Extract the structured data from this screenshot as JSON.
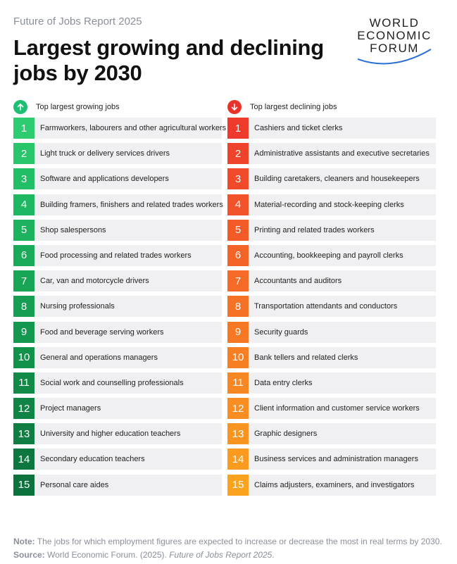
{
  "header": {
    "kicker": "Future of Jobs Report 2025",
    "title": "Largest growing and declining jobs by 2030",
    "logo_lines": [
      "WORLD",
      "ECONOMIC",
      "FORUM"
    ]
  },
  "growing": {
    "heading": "Top largest growing jobs",
    "icon": "arrow-up-icon",
    "color": "#1fbf73",
    "items": [
      {
        "rank": "1",
        "label": "Farmworkers, labourers and other agricultural workers"
      },
      {
        "rank": "2",
        "label": "Light truck or delivery services drivers"
      },
      {
        "rank": "3",
        "label": "Software and applications developers"
      },
      {
        "rank": "4",
        "label": "Building framers, finishers and related trades workers"
      },
      {
        "rank": "5",
        "label": "Shop salespersons"
      },
      {
        "rank": "6",
        "label": "Food processing and related trades workers"
      },
      {
        "rank": "7",
        "label": "Car, van and motorcycle drivers"
      },
      {
        "rank": "8",
        "label": "Nursing professionals"
      },
      {
        "rank": "9",
        "label": "Food and beverage serving workers"
      },
      {
        "rank": "10",
        "label": "General and operations managers"
      },
      {
        "rank": "11",
        "label": "Social work and counselling professionals"
      },
      {
        "rank": "12",
        "label": "Project managers"
      },
      {
        "rank": "13",
        "label": "University and higher education teachers"
      },
      {
        "rank": "14",
        "label": "Secondary education teachers"
      },
      {
        "rank": "15",
        "label": "Personal care aides"
      }
    ],
    "rank_colors": [
      "#2ecc71",
      "#28c56a",
      "#22be66",
      "#1fb862",
      "#1db25e",
      "#1aab5a",
      "#18a556",
      "#169e52",
      "#14974e",
      "#12914b",
      "#118a48",
      "#0f8445",
      "#0e7e42",
      "#0c7840",
      "#0b723d"
    ]
  },
  "declining": {
    "heading": "Top largest declining jobs",
    "icon": "arrow-down-icon",
    "color": "#e8332a",
    "items": [
      {
        "rank": "1",
        "label": "Cashiers and ticket clerks"
      },
      {
        "rank": "2",
        "label": "Administrative assistants and executive secretaries"
      },
      {
        "rank": "3",
        "label": "Building caretakers, cleaners and housekeepers"
      },
      {
        "rank": "4",
        "label": "Material-recording and stock-keeping clerks"
      },
      {
        "rank": "5",
        "label": "Printing and related trades workers"
      },
      {
        "rank": "6",
        "label": "Accounting, bookkeeping and payroll clerks"
      },
      {
        "rank": "7",
        "label": "Accountants and auditors"
      },
      {
        "rank": "8",
        "label": "Transportation attendants and conductors"
      },
      {
        "rank": "9",
        "label": "Security guards"
      },
      {
        "rank": "10",
        "label": "Bank tellers and related clerks"
      },
      {
        "rank": "11",
        "label": "Data entry clerks"
      },
      {
        "rank": "12",
        "label": "Client information and customer service workers"
      },
      {
        "rank": "13",
        "label": "Graphic designers"
      },
      {
        "rank": "14",
        "label": "Business services and administration managers"
      },
      {
        "rank": "15",
        "label": "Claims adjusters, examiners, and investigators"
      }
    ],
    "rank_colors": [
      "#ee3a2c",
      "#ef422b",
      "#f04a2a",
      "#f15229",
      "#f25a28",
      "#f36227",
      "#f46a26",
      "#f57125",
      "#f67824",
      "#f77f23",
      "#f88622",
      "#f98d21",
      "#f99420",
      "#fa9b1f",
      "#fba21e"
    ]
  },
  "footer": {
    "note_label": "Note:",
    "note_text": " The jobs for which employment figures are expected to increase or decrease the most in real terms by 2030.",
    "source_label": "Source:",
    "source_text": " World Economic Forum. (2025). ",
    "source_title": "Future of Jobs Report 2025",
    "source_end": "."
  }
}
